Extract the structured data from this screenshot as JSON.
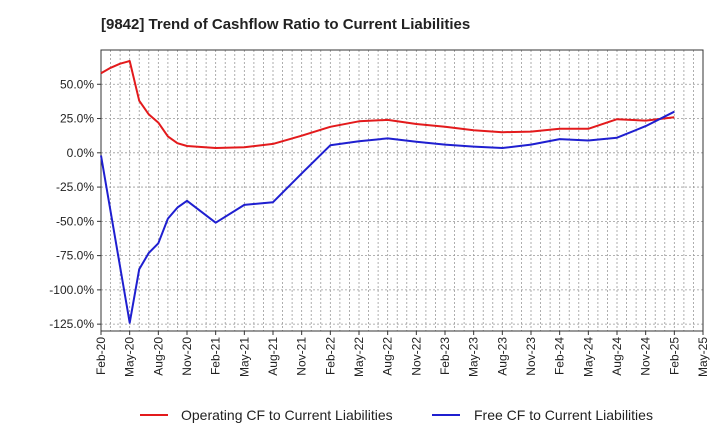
{
  "chart_data": {
    "type": "line",
    "title": "[9842]  Trend of Cashflow Ratio to Current Liabilities",
    "xlabel": "",
    "ylabel": "",
    "x_ticks": [
      "Feb-20",
      "May-20",
      "Aug-20",
      "Nov-20",
      "Feb-21",
      "May-21",
      "Aug-21",
      "Nov-21",
      "Feb-22",
      "May-22",
      "Aug-22",
      "Nov-22",
      "Feb-23",
      "May-23",
      "Aug-23",
      "Nov-23",
      "Feb-24",
      "May-24",
      "Aug-24",
      "Nov-24",
      "Feb-25",
      "May-25"
    ],
    "y_ticks": [
      "50.0%",
      "25.0%",
      "0.0%",
      "-25.0%",
      "-50.0%",
      "-75.0%",
      "-100.0%",
      "-125.0%"
    ],
    "y_tick_values": [
      50,
      25,
      0,
      -25,
      -50,
      -75,
      -100,
      -125
    ],
    "ylim": [
      -130,
      75
    ],
    "grid": true,
    "legend_position": "bottom",
    "series": [
      {
        "name": "Operating CF to Current Liabilities",
        "color": "#e31a1c",
        "points": [
          [
            "Feb-20",
            58
          ],
          [
            "Mar-20",
            62
          ],
          [
            "Apr-20",
            65
          ],
          [
            "May-20",
            67
          ],
          [
            "Jun-20",
            38
          ],
          [
            "Jul-20",
            28
          ],
          [
            "Aug-20",
            22
          ],
          [
            "Sep-20",
            12
          ],
          [
            "Oct-20",
            7
          ],
          [
            "Nov-20",
            5
          ],
          [
            "Feb-21",
            3.5
          ],
          [
            "May-21",
            4
          ],
          [
            "Aug-21",
            6.5
          ],
          [
            "Nov-21",
            12.5
          ],
          [
            "Feb-22",
            19
          ],
          [
            "May-22",
            23
          ],
          [
            "Aug-22",
            24
          ],
          [
            "Nov-22",
            21
          ],
          [
            "Feb-23",
            19
          ],
          [
            "May-23",
            16.5
          ],
          [
            "Aug-23",
            15
          ],
          [
            "Nov-23",
            15.5
          ],
          [
            "Feb-24",
            17.5
          ],
          [
            "May-24",
            17.5
          ],
          [
            "Aug-24",
            24.5
          ],
          [
            "Nov-24",
            23.5
          ],
          [
            "Feb-25",
            26
          ]
        ]
      },
      {
        "name": "Free CF to Current Liabilities",
        "color": "#1f1fd0",
        "points": [
          [
            "Feb-20",
            -2
          ],
          [
            "May-20",
            -124
          ],
          [
            "Jun-20",
            -85
          ],
          [
            "Jul-20",
            -73
          ],
          [
            "Aug-20",
            -66
          ],
          [
            "Sep-20",
            -48
          ],
          [
            "Oct-20",
            -40
          ],
          [
            "Nov-20",
            -35
          ],
          [
            "Feb-21",
            -51
          ],
          [
            "May-21",
            -38
          ],
          [
            "Aug-21",
            -36
          ],
          [
            "Nov-21",
            -15
          ],
          [
            "Feb-22",
            5.5
          ],
          [
            "May-22",
            8.5
          ],
          [
            "Aug-22",
            10.5
          ],
          [
            "Nov-22",
            8
          ],
          [
            "Feb-23",
            6
          ],
          [
            "May-23",
            4.5
          ],
          [
            "Aug-23",
            3.5
          ],
          [
            "Nov-23",
            6
          ],
          [
            "Feb-24",
            10
          ],
          [
            "May-24",
            9
          ],
          [
            "Aug-24",
            11
          ],
          [
            "Nov-24",
            19.5
          ],
          [
            "Feb-25",
            30
          ]
        ]
      }
    ]
  }
}
